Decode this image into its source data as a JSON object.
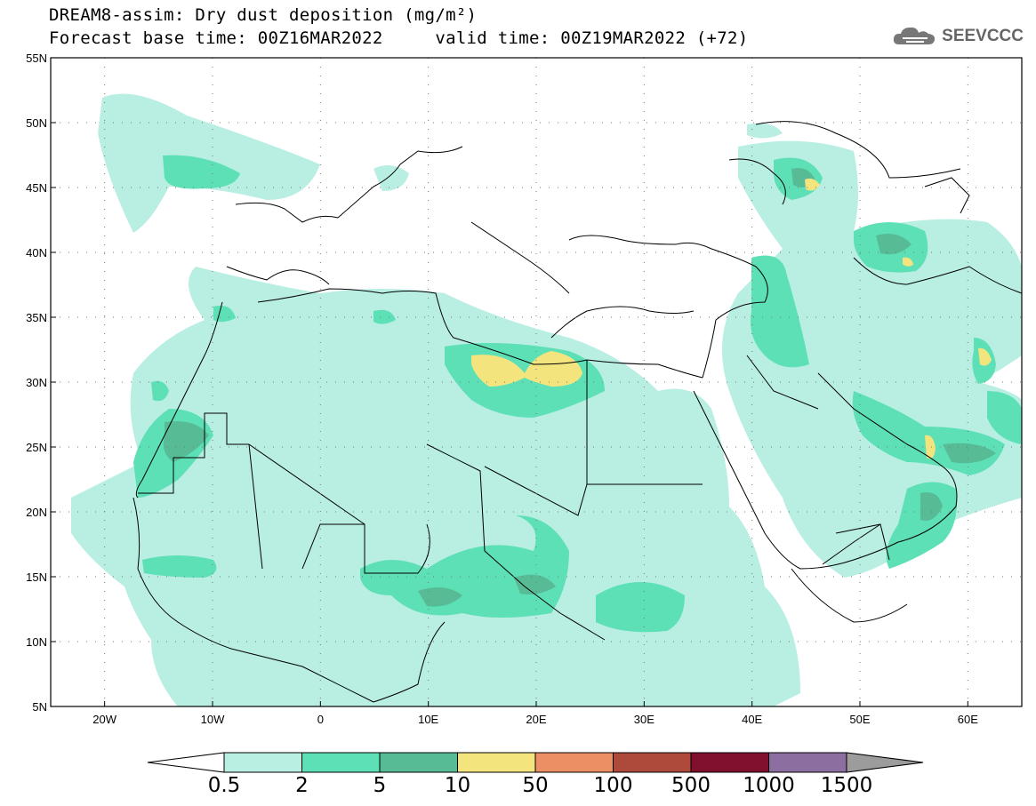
{
  "header": {
    "title_line1": "DREAM8-assim: Dry dust deposition (mg/m²)",
    "title_line2": "Forecast base time: 00Z16MAR2022     valid time: 00Z19MAR2022 (+72)",
    "logo_text": "SEEVCCC"
  },
  "axes": {
    "lat_labels": [
      "55N",
      "50N",
      "45N",
      "40N",
      "35N",
      "30N",
      "25N",
      "20N",
      "15N",
      "10N",
      "5N"
    ],
    "lon_labels": [
      "20W",
      "10W",
      "0",
      "10E",
      "20E",
      "30E",
      "40E",
      "50E",
      "60E"
    ]
  },
  "colorbar": {
    "labels": [
      "0.5",
      "2",
      "5",
      "10",
      "50",
      "100",
      "500",
      "1000",
      "1500"
    ],
    "colors": [
      "#b9eee3",
      "#5ee0b7",
      "#57bb96",
      "#f4e47e",
      "#ec8f64",
      "#ad4a3c",
      "#80102e",
      "#8c6ea0"
    ],
    "under_color": "#ffffff",
    "over_color": "#9c9c9c"
  },
  "map": {
    "lat_range": [
      5,
      55
    ],
    "lon_range": [
      -25,
      65
    ]
  }
}
